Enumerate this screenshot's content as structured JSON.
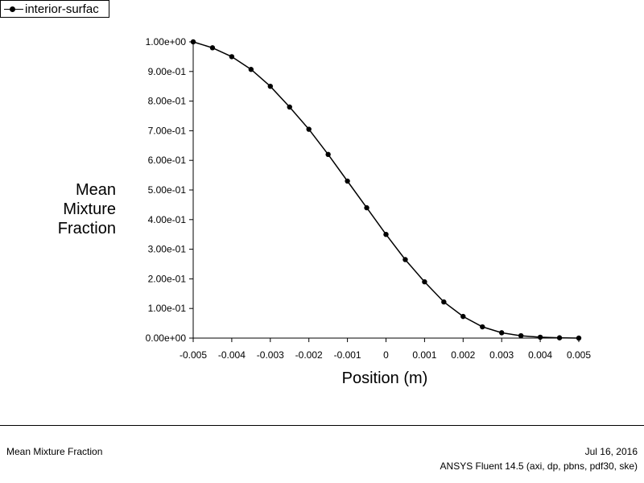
{
  "legend": {
    "label": "interior-surfac"
  },
  "ylabel_lines": [
    "Mean",
    "Mixture",
    "Fraction"
  ],
  "footer": {
    "title": "Mean Mixture Fraction",
    "date": "Jul 16, 2016",
    "app": "ANSYS Fluent 14.5 (axi, dp, pbns, pdf30, ske)"
  },
  "chart_data": {
    "type": "line",
    "title": "",
    "xlabel": "Position (m)",
    "ylabel": "Mean Mixture Fraction",
    "xlim": [
      -0.005,
      0.005
    ],
    "ylim": [
      0,
      1.0
    ],
    "grid": false,
    "legend_position": "top-left",
    "xticks": [
      -0.005,
      -0.004,
      -0.003,
      -0.002,
      -0.001,
      0,
      0.001,
      0.002,
      0.003,
      0.004,
      0.005
    ],
    "xtick_labels": [
      "-0.005",
      "-0.004",
      "-0.003",
      "-0.002",
      "-0.001",
      "0",
      "0.001",
      "0.002",
      "0.003",
      "0.004",
      "0.005"
    ],
    "yticks": [
      0,
      0.1,
      0.2,
      0.3,
      0.4,
      0.5,
      0.6,
      0.7,
      0.8,
      0.9,
      1.0
    ],
    "ytick_labels": [
      "0.00e+00",
      "1.00e-01",
      "2.00e-01",
      "3.00e-01",
      "4.00e-01",
      "5.00e-01",
      "6.00e-01",
      "7.00e-01",
      "8.00e-01",
      "9.00e-01",
      "1.00e+00"
    ],
    "series": [
      {
        "name": "interior-surfac",
        "color": "#000000",
        "x": [
          -0.005,
          -0.0045,
          -0.004,
          -0.0035,
          -0.003,
          -0.0025,
          -0.002,
          -0.0015,
          -0.001,
          -0.0005,
          0,
          0.0005,
          0.001,
          0.0015,
          0.002,
          0.0025,
          0.003,
          0.0035,
          0.004,
          0.0045,
          0.005
        ],
        "y": [
          1.0,
          0.98,
          0.95,
          0.907,
          0.85,
          0.78,
          0.705,
          0.62,
          0.53,
          0.44,
          0.35,
          0.265,
          0.19,
          0.122,
          0.073,
          0.038,
          0.018,
          0.008,
          0.003,
          0.001,
          0.0
        ]
      }
    ]
  }
}
